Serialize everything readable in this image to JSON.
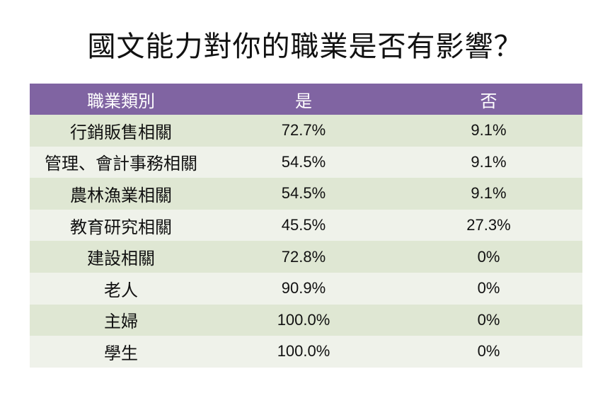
{
  "title": "國文能力對你的職業是否有影響？",
  "colors": {
    "header_bg": "#8064a2",
    "header_text": "#ffffff",
    "row_dark": "#dfe7d3",
    "row_light": "#eff2ea"
  },
  "chart_data": {
    "type": "table",
    "title": "國文能力對你的職業是否有影響？",
    "columns": [
      "職業類別",
      "是",
      "否"
    ],
    "rows": [
      [
        "行銷販售相關",
        "72.7%",
        "9.1%"
      ],
      [
        "管理、會計事務相關",
        "54.5%",
        "9.1%"
      ],
      [
        "農林漁業相關",
        "54.5%",
        "9.1%"
      ],
      [
        "教育研究相關",
        "45.5%",
        "27.3%"
      ],
      [
        "建設相關",
        "72.8%",
        "0%"
      ],
      [
        "老人",
        "90.9%",
        "0%"
      ],
      [
        "主婦",
        "100.0%",
        "0%"
      ],
      [
        "學生",
        "100.0%",
        "0%"
      ]
    ]
  }
}
